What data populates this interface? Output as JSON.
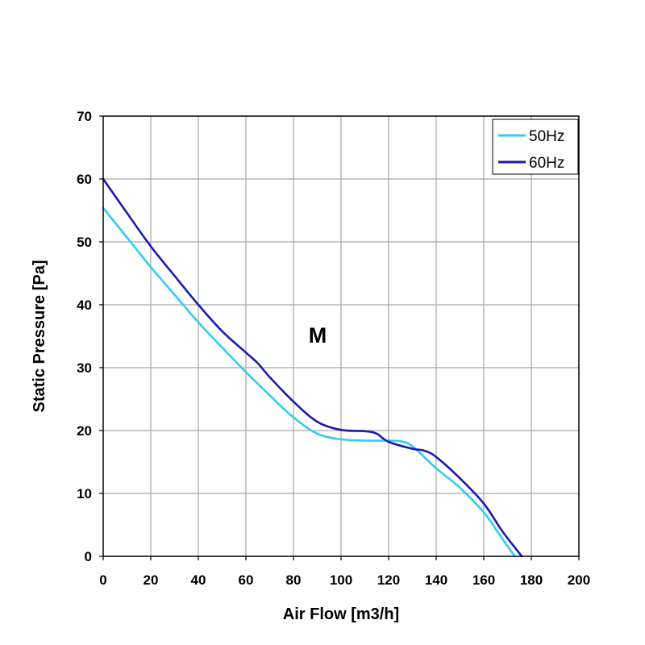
{
  "chart_data": {
    "type": "line",
    "title": "",
    "xlabel": "Air Flow [m3/h]",
    "ylabel": "Static Pressure [Pa]",
    "xlim": [
      0,
      200
    ],
    "ylim": [
      0,
      70
    ],
    "x_ticks": [
      0,
      20,
      40,
      60,
      80,
      100,
      120,
      140,
      160,
      180,
      200
    ],
    "y_ticks": [
      0,
      10,
      20,
      30,
      40,
      50,
      60,
      70
    ],
    "grid": true,
    "legend": "top-right",
    "annotation": "M",
    "series": [
      {
        "name": "50Hz",
        "color": "#33ccf0",
        "points": [
          [
            0,
            55.4
          ],
          [
            10,
            50.7
          ],
          [
            20,
            46.0
          ],
          [
            30,
            41.6
          ],
          [
            40,
            37.2
          ],
          [
            50,
            33.2
          ],
          [
            60,
            29.3
          ],
          [
            70,
            25.6
          ],
          [
            80,
            22.1
          ],
          [
            90,
            19.5
          ],
          [
            100,
            18.6
          ],
          [
            110,
            18.4
          ],
          [
            120,
            18.4
          ],
          [
            125,
            18.3
          ],
          [
            130,
            17.5
          ],
          [
            140,
            14.0
          ],
          [
            150,
            10.9
          ],
          [
            160,
            7.0
          ],
          [
            166,
            3.8
          ],
          [
            173,
            0
          ]
        ]
      },
      {
        "name": "60Hz",
        "color": "#1a1ab0",
        "points": [
          [
            0,
            60.0
          ],
          [
            10,
            54.6
          ],
          [
            20,
            49.3
          ],
          [
            30,
            44.6
          ],
          [
            40,
            40.0
          ],
          [
            50,
            35.8
          ],
          [
            60,
            32.4
          ],
          [
            65,
            30.7
          ],
          [
            70,
            28.5
          ],
          [
            80,
            24.6
          ],
          [
            90,
            21.4
          ],
          [
            100,
            20.1
          ],
          [
            110,
            19.9
          ],
          [
            115,
            19.5
          ],
          [
            120,
            18.2
          ],
          [
            130,
            17.1
          ],
          [
            135,
            16.8
          ],
          [
            140,
            15.8
          ],
          [
            150,
            12.4
          ],
          [
            160,
            8.4
          ],
          [
            168,
            3.9
          ],
          [
            176,
            0
          ]
        ]
      }
    ]
  }
}
